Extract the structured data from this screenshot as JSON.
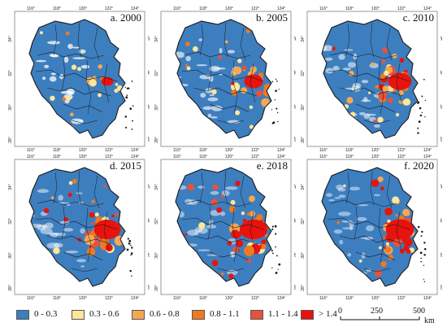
{
  "panels": [
    {
      "label": "a. 2000"
    },
    {
      "label": "b. 2005"
    },
    {
      "label": "c. 2010"
    },
    {
      "label": "d. 2015"
    },
    {
      "label": "e. 2018"
    },
    {
      "label": "f. 2020"
    }
  ],
  "lon_ticks": [
    "116°",
    "118°",
    "120°",
    "122°",
    "124°"
  ],
  "lat_ticks": [
    "34°",
    "32°",
    "30°",
    "28°"
  ],
  "legend": {
    "items": [
      {
        "label": "0 - 0.3",
        "color": "#3d7ebf"
      },
      {
        "label": "0.3 - 0.6",
        "color": "#fde69a"
      },
      {
        "label": "0.6 - 0.8",
        "color": "#f5a754"
      },
      {
        "label": "0.8 - 1.1",
        "color": "#ee7a21"
      },
      {
        "label": "1.1 - 1.4",
        "color": "#e3533e"
      },
      {
        "label": "> 1.4",
        "color": "#e8130d"
      }
    ]
  },
  "scale_bar": {
    "zero": "0",
    "mid": "250",
    "max": "500",
    "unit": "km"
  },
  "colors": {
    "region_fill": "#3d7ebf",
    "boundary": "#1a1a1a",
    "frame": "#555555"
  }
}
